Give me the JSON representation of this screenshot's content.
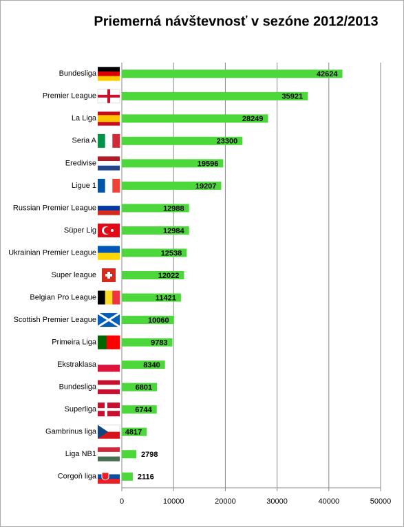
{
  "chart_data": {
    "type": "barh",
    "title": "Priemerná návštevnosť v sezóne 2012/2013",
    "categories": [
      "Bundesliga",
      "Premier League",
      "La Liga",
      "Seria A",
      "Eredivise",
      "Ligue 1",
      "Russian Premier League",
      "Süper Lig",
      "Ukrainian Premier League",
      "Super league",
      "Belgian Pro League",
      "Scottish Premier League",
      "Primeira Liga",
      "Ekstraklasa",
      "Bundesliga",
      "Superliga",
      "Gambrinus liga",
      "Liga NB1",
      "Corgoň liga"
    ],
    "values": [
      42624,
      35921,
      28249,
      23300,
      19596,
      19207,
      12988,
      12984,
      12538,
      12022,
      11421,
      10060,
      9783,
      8340,
      6801,
      6744,
      4817,
      2798,
      2116
    ],
    "color": "#4cd83a",
    "xlim": [
      0,
      50000
    ],
    "xticks": [
      0,
      10000,
      20000,
      30000,
      40000,
      50000
    ],
    "grid": true
  }
}
